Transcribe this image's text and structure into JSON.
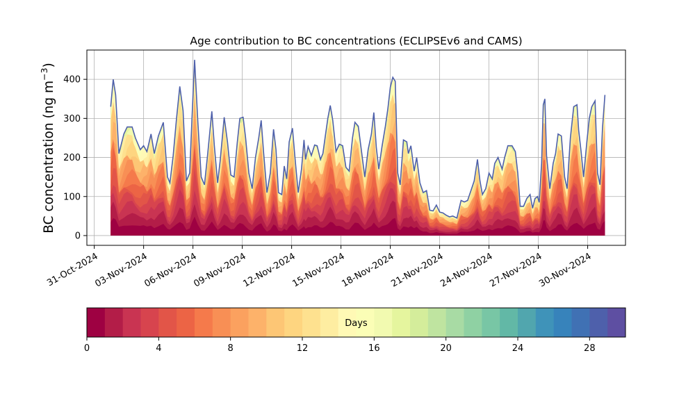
{
  "chart_data": {
    "type": "area",
    "title": "Age contribution to BC concentrations (ECLIPSEv6 and CAMS)",
    "ylabel": "BC concentration (ng m",
    "ylabel_superscript": "−3",
    "ylabel_suffix": ")",
    "xlabel": "",
    "ylim": [
      -25,
      475
    ],
    "yticks": [
      0,
      100,
      200,
      300,
      400
    ],
    "xlim_days": [
      -0.45,
      32.3
    ],
    "xticks": [
      {
        "day": 0,
        "label": "31-Oct-2024"
      },
      {
        "day": 3,
        "label": "03-Nov-2024"
      },
      {
        "day": 6,
        "label": "06-Nov-2024"
      },
      {
        "day": 9,
        "label": "09-Nov-2024"
      },
      {
        "day": 12,
        "label": "12-Nov-2024"
      },
      {
        "day": 15,
        "label": "15-Nov-2024"
      },
      {
        "day": 18,
        "label": "18-Nov-2024"
      },
      {
        "day": 21,
        "label": "21-Nov-2024"
      },
      {
        "day": 24,
        "label": "24-Nov-2024"
      },
      {
        "day": 27,
        "label": "27-Nov-2024"
      },
      {
        "day": 30,
        "label": "30-Nov-2024"
      }
    ],
    "grid": true,
    "series_note": "stacked by age in days (0-30)",
    "total": [
      [
        1.0,
        330
      ],
      [
        1.15,
        400
      ],
      [
        1.3,
        360
      ],
      [
        1.5,
        210
      ],
      [
        1.8,
        260
      ],
      [
        2.0,
        278
      ],
      [
        2.3,
        278
      ],
      [
        2.5,
        250
      ],
      [
        2.8,
        220
      ],
      [
        3.0,
        230
      ],
      [
        3.2,
        215
      ],
      [
        3.45,
        260
      ],
      [
        3.65,
        210
      ],
      [
        3.9,
        255
      ],
      [
        4.2,
        290
      ],
      [
        4.45,
        150
      ],
      [
        4.6,
        135
      ],
      [
        4.8,
        205
      ],
      [
        5.0,
        300
      ],
      [
        5.2,
        382
      ],
      [
        5.4,
        320
      ],
      [
        5.6,
        140
      ],
      [
        5.8,
        160
      ],
      [
        5.95,
        310
      ],
      [
        6.1,
        450
      ],
      [
        6.3,
        290
      ],
      [
        6.5,
        150
      ],
      [
        6.7,
        130
      ],
      [
        6.9,
        210
      ],
      [
        7.15,
        318
      ],
      [
        7.3,
        230
      ],
      [
        7.5,
        135
      ],
      [
        7.65,
        190
      ],
      [
        7.9,
        303
      ],
      [
        8.1,
        240
      ],
      [
        8.3,
        155
      ],
      [
        8.5,
        150
      ],
      [
        8.7,
        240
      ],
      [
        8.85,
        300
      ],
      [
        9.05,
        303
      ],
      [
        9.2,
        250
      ],
      [
        9.4,
        160
      ],
      [
        9.6,
        120
      ],
      [
        9.8,
        200
      ],
      [
        10.0,
        250
      ],
      [
        10.15,
        295
      ],
      [
        10.3,
        210
      ],
      [
        10.5,
        110
      ],
      [
        10.7,
        160
      ],
      [
        10.9,
        272
      ],
      [
        11.05,
        220
      ],
      [
        11.2,
        110
      ],
      [
        11.4,
        105
      ],
      [
        11.55,
        178
      ],
      [
        11.7,
        145
      ],
      [
        11.85,
        240
      ],
      [
        12.05,
        275
      ],
      [
        12.2,
        200
      ],
      [
        12.4,
        110
      ],
      [
        12.6,
        170
      ],
      [
        12.75,
        245
      ],
      [
        12.85,
        195
      ],
      [
        13.0,
        228
      ],
      [
        13.2,
        205
      ],
      [
        13.4,
        232
      ],
      [
        13.55,
        230
      ],
      [
        13.75,
        195
      ],
      [
        13.9,
        210
      ],
      [
        14.05,
        255
      ],
      [
        14.2,
        300
      ],
      [
        14.35,
        333
      ],
      [
        14.5,
        295
      ],
      [
        14.7,
        215
      ],
      [
        14.9,
        234
      ],
      [
        15.1,
        230
      ],
      [
        15.3,
        175
      ],
      [
        15.5,
        165
      ],
      [
        15.7,
        250
      ],
      [
        15.85,
        290
      ],
      [
        16.05,
        280
      ],
      [
        16.25,
        215
      ],
      [
        16.45,
        150
      ],
      [
        16.65,
        220
      ],
      [
        16.85,
        260
      ],
      [
        17.0,
        315
      ],
      [
        17.15,
        225
      ],
      [
        17.3,
        170
      ],
      [
        17.5,
        230
      ],
      [
        17.7,
        280
      ],
      [
        17.85,
        325
      ],
      [
        18.0,
        380
      ],
      [
        18.15,
        405
      ],
      [
        18.3,
        395
      ],
      [
        18.45,
        160
      ],
      [
        18.6,
        130
      ],
      [
        18.8,
        245
      ],
      [
        19.0,
        240
      ],
      [
        19.1,
        210
      ],
      [
        19.25,
        230
      ],
      [
        19.45,
        165
      ],
      [
        19.6,
        200
      ],
      [
        19.8,
        135
      ],
      [
        20.0,
        110
      ],
      [
        20.2,
        115
      ],
      [
        20.4,
        65
      ],
      [
        20.6,
        63
      ],
      [
        20.8,
        78
      ],
      [
        21.0,
        60
      ],
      [
        21.2,
        58
      ],
      [
        21.4,
        52
      ],
      [
        21.6,
        48
      ],
      [
        21.8,
        50
      ],
      [
        22.05,
        45
      ],
      [
        22.3,
        90
      ],
      [
        22.5,
        86
      ],
      [
        22.7,
        90
      ],
      [
        22.9,
        115
      ],
      [
        23.1,
        140
      ],
      [
        23.3,
        195
      ],
      [
        23.45,
        140
      ],
      [
        23.6,
        105
      ],
      [
        23.8,
        120
      ],
      [
        24.0,
        160
      ],
      [
        24.2,
        145
      ],
      [
        24.35,
        185
      ],
      [
        24.55,
        200
      ],
      [
        24.8,
        170
      ],
      [
        24.95,
        200
      ],
      [
        25.15,
        230
      ],
      [
        25.4,
        230
      ],
      [
        25.6,
        215
      ],
      [
        25.75,
        160
      ],
      [
        25.9,
        75
      ],
      [
        26.1,
        75
      ],
      [
        26.3,
        95
      ],
      [
        26.5,
        105
      ],
      [
        26.65,
        70
      ],
      [
        26.8,
        95
      ],
      [
        26.95,
        100
      ],
      [
        27.05,
        85
      ],
      [
        27.2,
        185
      ],
      [
        27.3,
        335
      ],
      [
        27.4,
        350
      ],
      [
        27.5,
        205
      ],
      [
        27.7,
        120
      ],
      [
        27.9,
        185
      ],
      [
        28.05,
        210
      ],
      [
        28.2,
        260
      ],
      [
        28.4,
        255
      ],
      [
        28.6,
        150
      ],
      [
        28.75,
        120
      ],
      [
        28.95,
        250
      ],
      [
        29.15,
        330
      ],
      [
        29.35,
        335
      ],
      [
        29.45,
        270
      ],
      [
        29.6,
        215
      ],
      [
        29.75,
        150
      ],
      [
        29.95,
        240
      ],
      [
        30.1,
        300
      ],
      [
        30.25,
        330
      ],
      [
        30.45,
        345
      ],
      [
        30.6,
        160
      ],
      [
        30.75,
        130
      ],
      [
        30.9,
        275
      ],
      [
        31.05,
        360
      ]
    ],
    "colorbar": {
      "label": "Days",
      "range": [
        0,
        30
      ],
      "ticks": [
        0,
        4,
        8,
        12,
        16,
        20,
        24,
        28
      ],
      "colors": [
        "#9e0142",
        "#b31d48",
        "#c93452",
        "#d7444e",
        "#e25548",
        "#ec6445",
        "#f57a4b",
        "#f88f55",
        "#fba15f",
        "#fdb26a",
        "#fdc675",
        "#fed580",
        "#fee18f",
        "#feeda1",
        "#fff9b5",
        "#fbfeb6",
        "#f2fab0",
        "#e5f59e",
        "#d4ed9b",
        "#bfe4a0",
        "#a8dba4",
        "#8fd1a3",
        "#78c6a5",
        "#62b8a6",
        "#51a6ae",
        "#3f93b9",
        "#3783bb",
        "#4071b4",
        "#4e60ab",
        "#5e4fa2"
      ]
    }
  }
}
